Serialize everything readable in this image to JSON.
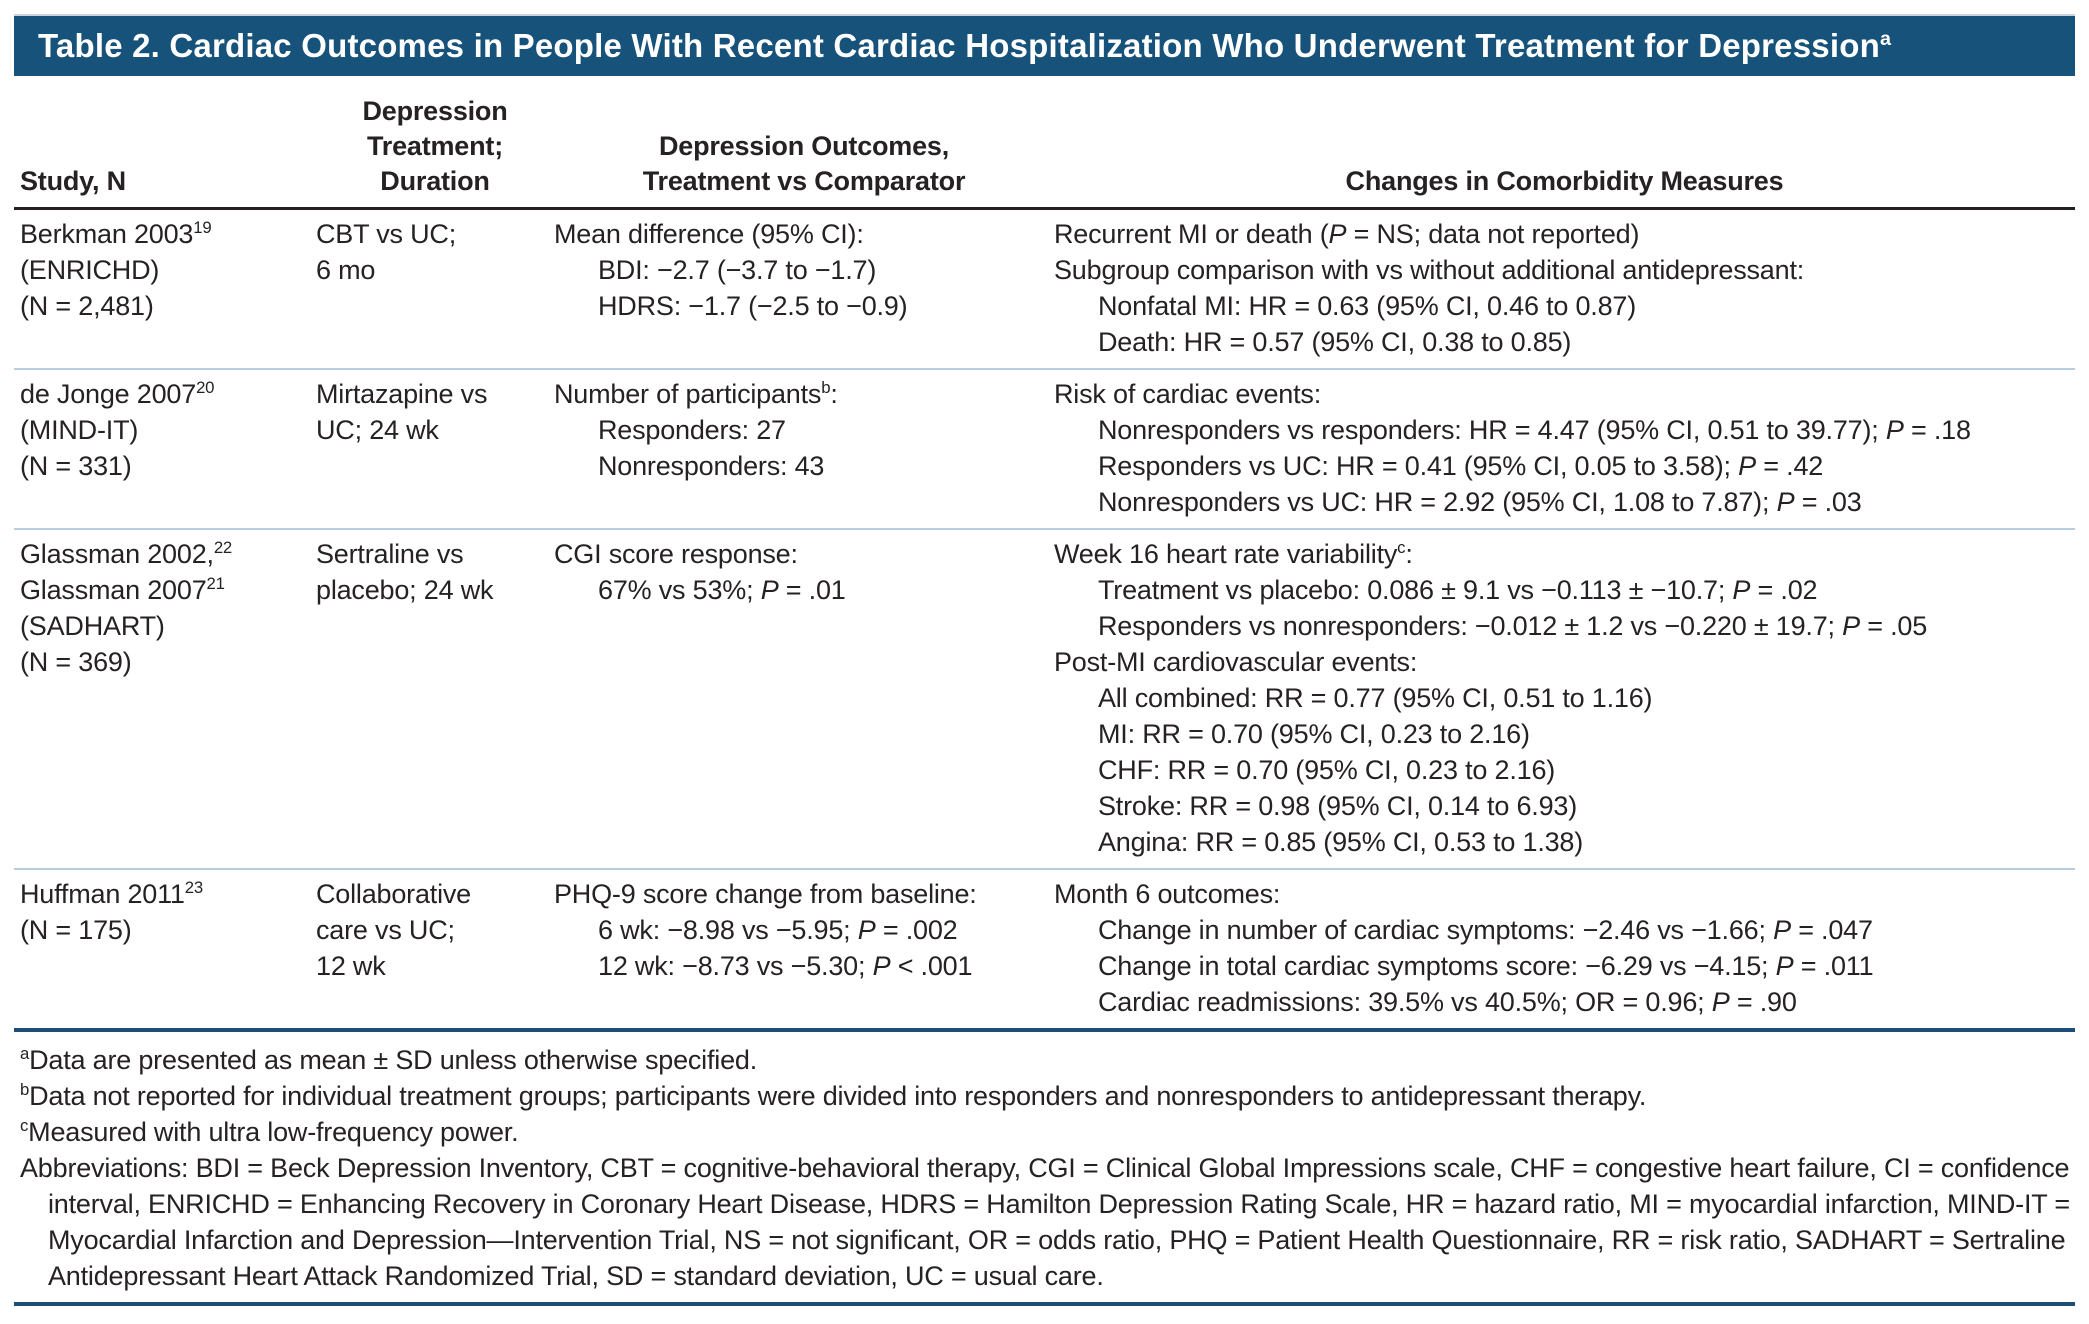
{
  "header": {
    "title": "Table 2. Cardiac Outcomes in People With Recent Cardiac Hospitalization Who Underwent Treatment for Depression^{a}"
  },
  "colors": {
    "title_bar": "#17527a",
    "header_rule": "#242021",
    "row_separator": "#b9cce2",
    "navy_rule": "#1d4e78",
    "text": "#262223"
  },
  "columns": [
    {
      "id": "study",
      "align": "left",
      "lines": [
        "Study, N"
      ]
    },
    {
      "id": "treatment",
      "align": "center",
      "lines": [
        "Depression",
        "Treatment;",
        "Duration"
      ]
    },
    {
      "id": "outcomes",
      "align": "center",
      "lines": [
        "Depression Outcomes,",
        "Treatment vs Comparator"
      ]
    },
    {
      "id": "comorbidity",
      "align": "center",
      "lines": [
        "Changes in Comorbidity Measures"
      ]
    }
  ],
  "rows": [
    {
      "study": [
        "Berkman 2003^{19}",
        "(ENRICHD)",
        "(N = 2,481)"
      ],
      "treatment": [
        "CBT vs UC;",
        "6 mo"
      ],
      "outcomes": [
        {
          "t": "Mean difference (95% CI):"
        },
        {
          "t": "BDI: −2.7 (−3.7 to −1.7)",
          "ind": 1
        },
        {
          "t": "HDRS: −1.7 (−2.5 to −0.9)",
          "ind": 1
        }
      ],
      "comorbidity": [
        {
          "t": "Recurrent MI or death (~P~ = NS; data not reported)"
        },
        {
          "t": "Subgroup comparison with vs without additional antidepressant:"
        },
        {
          "t": "Nonfatal MI: HR = 0.63 (95% CI, 0.46 to 0.87)",
          "ind": 1
        },
        {
          "t": "Death: HR = 0.57 (95% CI, 0.38 to 0.85)",
          "ind": 1
        }
      ]
    },
    {
      "study": [
        "de Jonge 2007^{20}",
        "(MIND-IT)",
        "(N = 331)"
      ],
      "treatment": [
        "Mirtazapine vs",
        "UC; 24 wk"
      ],
      "outcomes": [
        {
          "t": "Number of participants^{b}:"
        },
        {
          "t": "Responders: 27",
          "ind": 1
        },
        {
          "t": "Nonresponders: 43",
          "ind": 1
        }
      ],
      "comorbidity": [
        {
          "t": "Risk of cardiac events:"
        },
        {
          "t": "Nonresponders vs responders: HR = 4.47 (95% CI, 0.51 to 39.77); ~P~ = .18",
          "ind": 1
        },
        {
          "t": "Responders vs UC: HR = 0.41 (95% CI, 0.05 to 3.58); ~P~ = .42",
          "ind": 1
        },
        {
          "t": "Nonresponders vs UC: HR = 2.92 (95% CI, 1.08 to 7.87); ~P~ = .03",
          "ind": 1
        }
      ]
    },
    {
      "study": [
        "Glassman 2002,^{22}",
        "Glassman 2007^{21}",
        "(SADHART)",
        "(N = 369)"
      ],
      "treatment": [
        "Sertraline vs",
        "placebo; 24 wk"
      ],
      "outcomes": [
        {
          "t": "CGI score response:"
        },
        {
          "t": "67% vs 53%; ~P~ = .01",
          "ind": 1
        }
      ],
      "comorbidity": [
        {
          "t": "Week 16 heart rate variability^{c}:"
        },
        {
          "t": "Treatment vs placebo: 0.086 ± 9.1 vs −0.113 ± −10.7; ~P~ = .02",
          "ind": 1
        },
        {
          "t": "Responders vs nonresponders: −0.012 ± 1.2 vs −0.220 ± 19.7; ~P~ = .05",
          "ind": 1
        },
        {
          "t": "Post-MI cardiovascular events:"
        },
        {
          "t": "All combined: RR = 0.77 (95% CI, 0.51 to 1.16)",
          "ind": 1
        },
        {
          "t": "MI: RR = 0.70 (95% CI, 0.23 to 2.16)",
          "ind": 1
        },
        {
          "t": "CHF: RR = 0.70 (95% CI, 0.23 to 2.16)",
          "ind": 1
        },
        {
          "t": "Stroke: RR = 0.98 (95% CI, 0.14 to 6.93)",
          "ind": 1
        },
        {
          "t": "Angina: RR = 0.85 (95% CI, 0.53 to 1.38)",
          "ind": 1
        }
      ]
    },
    {
      "study": [
        "Huffman 2011^{23}",
        "(N = 175)"
      ],
      "treatment": [
        "Collaborative",
        "care vs UC;",
        "12 wk"
      ],
      "outcomes": [
        {
          "t": "PHQ-9 score change from baseline:"
        },
        {
          "t": "6 wk: −8.98 vs −5.95; ~P~ = .002",
          "ind": 1
        },
        {
          "t": "12 wk: −8.73 vs −5.30; ~P~ < .001",
          "ind": 1
        }
      ],
      "comorbidity": [
        {
          "t": "Month 6 outcomes:"
        },
        {
          "t": "Change in number of cardiac symptoms: −2.46 vs −1.66; ~P~ = .047",
          "ind": 1
        },
        {
          "t": "Change in total cardiac symptoms score: −6.29 vs −4.15; ~P~ = .011",
          "ind": 1
        },
        {
          "t": "Cardiac readmissions: 39.5% vs 40.5%; OR = 0.96; ~P~ = .90",
          "ind": 1
        }
      ]
    }
  ],
  "footnotes": {
    "notes": [
      "^{a}Data are presented as mean ± SD unless otherwise specified.",
      "^{b}Data not reported for individual treatment groups; participants were divided into responders and nonresponders to antidepressant therapy.",
      "^{c}Measured with ultra low-frequency power."
    ],
    "abbreviations": "Abbreviations: BDI = Beck Depression Inventory, CBT = cognitive-behavioral therapy, CGI = Clinical Global Impressions scale, CHF = congestive heart failure, CI = confidence interval, ENRICHD = Enhancing Recovery in Coronary Heart Disease, HDRS = Hamilton Depression Rating Scale, HR = hazard ratio, MI = myocardial infarction, MIND-IT = Myocardial Infarction and Depression—Intervention Trial, NS = not significant, OR = odds ratio, PHQ = Patient Health Questionnaire, RR = risk ratio, SADHART = Sertraline Antidepressant Heart Attack Randomized Trial, SD = standard deviation, UC = usual care."
  }
}
